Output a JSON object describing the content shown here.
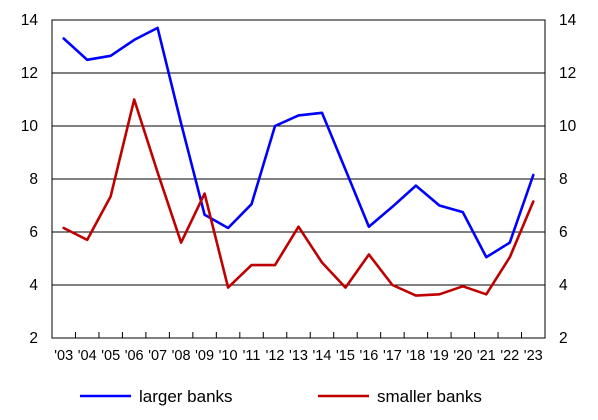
{
  "chart_data": {
    "type": "line",
    "x": [
      "'03",
      "'04",
      "'05",
      "'06",
      "'07",
      "'08",
      "'09",
      "'10",
      "'11",
      "'12",
      "'13",
      "'14",
      "'15",
      "'16",
      "'17",
      "'18",
      "'19",
      "'20",
      "'21",
      "'22",
      "'23"
    ],
    "series": [
      {
        "name": "larger banks",
        "color": "#0000ff",
        "values": [
          13.3,
          12.5,
          12.65,
          13.25,
          13.7,
          10.1,
          6.65,
          6.15,
          7.05,
          10.0,
          10.4,
          10.5,
          8.35,
          6.2,
          6.95,
          7.75,
          7.0,
          6.75,
          5.05,
          5.6,
          8.15
        ]
      },
      {
        "name": "smaller banks",
        "color": "#c00000",
        "values": [
          6.15,
          5.7,
          7.35,
          11.0,
          8.25,
          5.6,
          7.45,
          3.9,
          4.75,
          4.75,
          6.2,
          4.85,
          3.9,
          5.15,
          4.0,
          3.6,
          3.65,
          3.95,
          3.65,
          5.05,
          7.15
        ]
      }
    ],
    "ylim": [
      2,
      14
    ],
    "yticks": [
      2,
      4,
      6,
      8,
      10,
      12,
      14
    ],
    "grid": "horizontal",
    "legend": "bottom",
    "title": "",
    "xlabel": "",
    "ylabel": ""
  }
}
